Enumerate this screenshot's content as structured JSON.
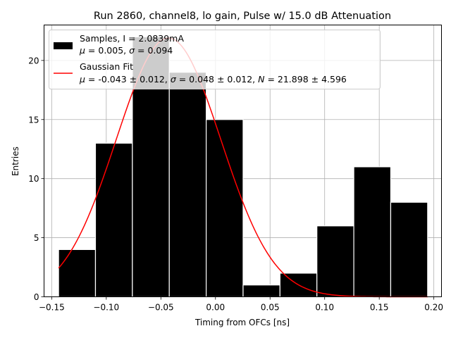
{
  "chart_data": {
    "type": "bar",
    "title": "Run 2860, channel8, lo gain, Pulse w/ 15.0 dB Attenuation",
    "xlabel": "Timing from OFCs [ns]",
    "ylabel": "Entries",
    "xlim": [
      -0.157,
      0.207
    ],
    "ylim": [
      0,
      23
    ],
    "grid": true,
    "legend_position": "top-left",
    "xticks": [
      -0.15,
      -0.1,
      -0.05,
      0.0,
      0.05,
      0.1,
      0.15,
      0.2
    ],
    "xtick_labels": [
      "−0.15",
      "−0.10",
      "−0.05",
      "0.00",
      "0.05",
      "0.10",
      "0.15",
      "0.20"
    ],
    "yticks": [
      0,
      5,
      10,
      15,
      20
    ],
    "ytick_labels": [
      "0",
      "5",
      "10",
      "15",
      "20"
    ],
    "bins": [
      {
        "x0": -0.1437,
        "x1": -0.1099,
        "count": 4
      },
      {
        "x0": -0.1099,
        "x1": -0.0761,
        "count": 13
      },
      {
        "x0": -0.0761,
        "x1": -0.0423,
        "count": 22
      },
      {
        "x0": -0.0423,
        "x1": -0.0085,
        "count": 19
      },
      {
        "x0": -0.0085,
        "x1": 0.0253,
        "count": 15
      },
      {
        "x0": 0.0253,
        "x1": 0.0591,
        "count": 1
      },
      {
        "x0": 0.0591,
        "x1": 0.0929,
        "count": 2
      },
      {
        "x0": 0.0929,
        "x1": 0.1267,
        "count": 6
      },
      {
        "x0": 0.1267,
        "x1": 0.1605,
        "count": 11
      },
      {
        "x0": 0.1605,
        "x1": 0.1943,
        "count": 8
      }
    ],
    "fit": {
      "type": "gaussian",
      "mu": -0.043,
      "sigma": 0.048,
      "N": 21.898,
      "x_range": [
        -0.1437,
        0.1943
      ]
    },
    "legend": [
      {
        "kind": "patch",
        "color": "#000000",
        "line1": "Samples, I = 2.0839mA",
        "line2_parts": [
          {
            "t": "μ",
            "italic": true
          },
          {
            "t": " = 0.005, ",
            "italic": false
          },
          {
            "t": "σ",
            "italic": true
          },
          {
            "t": " = 0.094",
            "italic": false
          }
        ]
      },
      {
        "kind": "line",
        "color": "#ff0000",
        "line1": "Gaussian Fit",
        "line2_parts": [
          {
            "t": "μ",
            "italic": true
          },
          {
            "t": " = -0.043 ± 0.012, ",
            "italic": false
          },
          {
            "t": "σ",
            "italic": true
          },
          {
            "t": " = 0.048 ± 0.012, ",
            "italic": false
          },
          {
            "t": "N",
            "italic": true
          },
          {
            "t": " = 21.898 ± 4.596",
            "italic": false
          }
        ]
      }
    ],
    "colors": {
      "bar": "#000000",
      "bar_edge": "#ffffff",
      "fit": "#ff0000",
      "grid": "#b0b0b0"
    }
  }
}
